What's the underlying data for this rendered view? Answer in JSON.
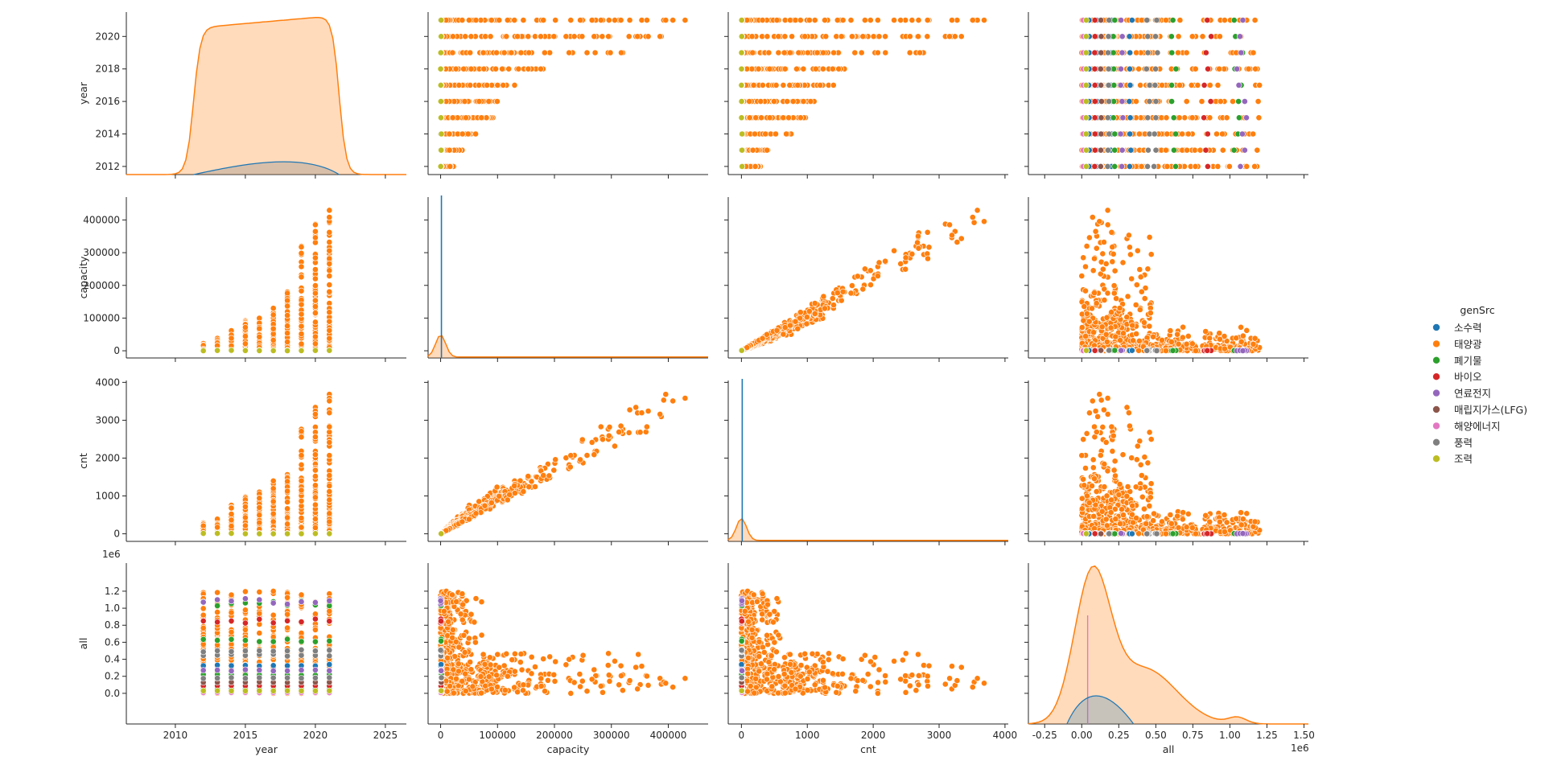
{
  "chart_data": {
    "type": "pairplot",
    "hue": "genSrc",
    "variables": [
      "year",
      "capacity",
      "cnt",
      "all"
    ],
    "axis_labels": {
      "year": "year",
      "capacity": "capacity",
      "cnt": "cnt",
      "all": "all"
    },
    "axis_ranges": {
      "year": [
        2006.5,
        2026.5
      ],
      "capacity": [
        -22000,
        470000
      ],
      "cnt": [
        -200,
        4050
      ],
      "all": [
        -360000,
        1530000
      ]
    },
    "year_row_range": [
      2011.5,
      2021.5
    ],
    "ticks": {
      "year_x": [
        "2010",
        "2015",
        "2020",
        "2025"
      ],
      "year_y": [
        "2012",
        "2014",
        "2016",
        "2018",
        "2020"
      ],
      "capacity": [
        "0",
        "100000",
        "200000",
        "300000",
        "400000"
      ],
      "cnt": [
        "0",
        "1000",
        "2000",
        "3000",
        "4000"
      ],
      "all_y": [
        "0.0",
        "0.2",
        "0.4",
        "0.6",
        "0.8",
        "1.0",
        "1.2"
      ],
      "all_x": [
        "-0.25",
        "0.00",
        "0.25",
        "0.50",
        "0.75",
        "1.00",
        "1.25",
        "1.50"
      ]
    },
    "offset_label": "1e6",
    "grid": false,
    "legend_position": "right",
    "legend": {
      "title": "genSrc",
      "entries": [
        {
          "label": "소수력",
          "color": "#1f77b4"
        },
        {
          "label": "태양광",
          "color": "#ff7f0e"
        },
        {
          "label": "폐기물",
          "color": "#2ca02c"
        },
        {
          "label": "바이오",
          "color": "#d62728"
        },
        {
          "label": "연료전지",
          "color": "#9467bd"
        },
        {
          "label": "매립지가스(LFG)",
          "color": "#8c564b"
        },
        {
          "label": "해양에너지",
          "color": "#e377c2"
        },
        {
          "label": "풍력",
          "color": "#7f7f7f"
        },
        {
          "label": "조력",
          "color": "#bcbd22"
        }
      ]
    },
    "years": [
      2012,
      2013,
      2014,
      2015,
      2016,
      2017,
      2018,
      2019,
      2020,
      2021
    ],
    "solar_max_capacity_by_year": [
      25000,
      38000,
      62000,
      92000,
      110000,
      130000,
      180000,
      320000,
      400000,
      450000
    ],
    "solar_max_cnt_by_year": [
      300,
      400,
      800,
      1000,
      1200,
      1400,
      1600,
      2800,
      3400,
      3850
    ],
    "other_sources_all_values": {
      "소수력": [
        0.05,
        0.1,
        0.2,
        0.33
      ],
      "폐기물": [
        0.22,
        0.62,
        1.06
      ],
      "바이오": [
        0.09,
        0.85
      ],
      "연료전지": [
        0.27,
        1.08
      ],
      "매립지가스(LFG)": [
        0.13
      ],
      "해양에너지": [
        0.01
      ],
      "풍력": [
        0.18,
        0.45,
        0.5
      ],
      "조력": [
        0.03
      ]
    },
    "all_kde_peak": 0.07
  }
}
